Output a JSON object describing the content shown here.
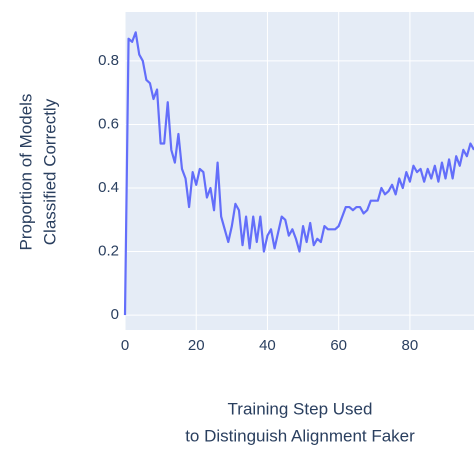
{
  "chart_data": {
    "type": "line",
    "x_title": [
      "Training Step Used",
      "to Distinguish Alignment Faker"
    ],
    "y_title": [
      "Proportion of Models",
      "Classified Correctly"
    ],
    "x": [
      0,
      1,
      2,
      3,
      4,
      5,
      6,
      7,
      8,
      9,
      10,
      11,
      12,
      13,
      14,
      15,
      16,
      17,
      18,
      19,
      20,
      21,
      22,
      23,
      24,
      25,
      26,
      27,
      28,
      29,
      30,
      31,
      32,
      33,
      34,
      35,
      36,
      37,
      38,
      39,
      40,
      41,
      42,
      43,
      44,
      45,
      46,
      47,
      48,
      49,
      50,
      51,
      52,
      53,
      54,
      55,
      56,
      57,
      58,
      59,
      60,
      61,
      62,
      63,
      64,
      65,
      66,
      67,
      68,
      69,
      70,
      71,
      72,
      73,
      74,
      75,
      76,
      77,
      78,
      79,
      80,
      81,
      82,
      83,
      84,
      85,
      86,
      87,
      88,
      89,
      90,
      91,
      92,
      93,
      94,
      95,
      96,
      97,
      98
    ],
    "series": [
      {
        "name": "Proportion Classified Correctly",
        "color": "#636efa",
        "values": [
          0,
          0.87,
          0.86,
          0.89,
          0.82,
          0.8,
          0.74,
          0.73,
          0.68,
          0.71,
          0.54,
          0.54,
          0.67,
          0.52,
          0.48,
          0.57,
          0.46,
          0.43,
          0.34,
          0.45,
          0.41,
          0.46,
          0.45,
          0.37,
          0.4,
          0.33,
          0.48,
          0.31,
          0.27,
          0.23,
          0.28,
          0.35,
          0.33,
          0.22,
          0.31,
          0.21,
          0.31,
          0.23,
          0.31,
          0.2,
          0.25,
          0.27,
          0.21,
          0.26,
          0.31,
          0.3,
          0.25,
          0.27,
          0.24,
          0.2,
          0.28,
          0.23,
          0.29,
          0.22,
          0.24,
          0.23,
          0.28,
          0.27,
          0.27,
          0.27,
          0.28,
          0.31,
          0.34,
          0.34,
          0.33,
          0.34,
          0.34,
          0.32,
          0.33,
          0.36,
          0.36,
          0.36,
          0.4,
          0.38,
          0.39,
          0.41,
          0.38,
          0.43,
          0.4,
          0.45,
          0.42,
          0.47,
          0.45,
          0.46,
          0.42,
          0.46,
          0.43,
          0.47,
          0.42,
          0.48,
          0.43,
          0.49,
          0.43,
          0.5,
          0.47,
          0.52,
          0.5,
          0.54,
          0.52
        ]
      }
    ],
    "xlim": [
      0,
      98
    ],
    "ylim": [
      -0.047,
      0.954
    ],
    "xticks": [
      0,
      20,
      40,
      60,
      80
    ],
    "yticks": [
      0,
      0.2,
      0.4,
      0.6,
      0.8
    ],
    "grid": true,
    "background": "#e5ecf6"
  }
}
